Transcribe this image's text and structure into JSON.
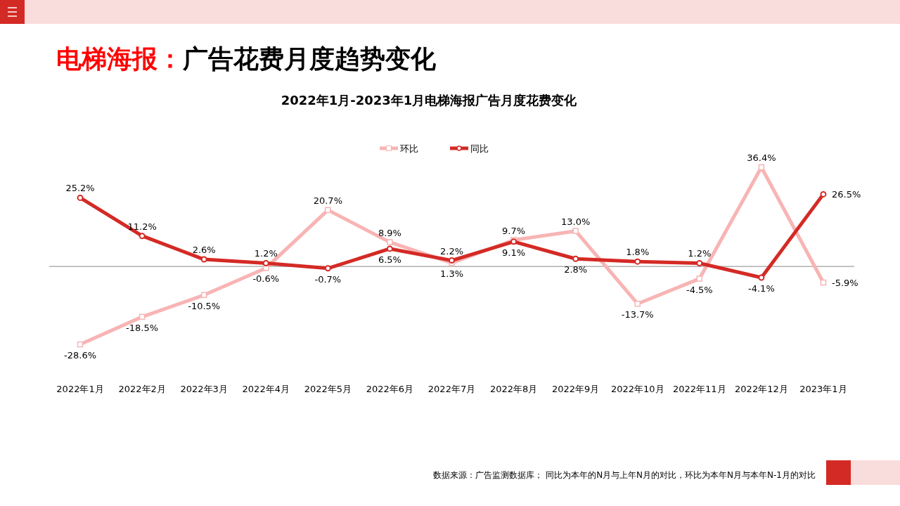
{
  "chart_data": {
    "type": "line",
    "title": "电梯海报：广告花费月度趋势变化",
    "subtitle": "2022年1月-2023年1月电梯海报广告月度花费变化",
    "categories": [
      "2022年1月",
      "2022年2月",
      "2022年3月",
      "2022年4月",
      "2022年5月",
      "2022年6月",
      "2022年7月",
      "2022年8月",
      "2022年9月",
      "2022年10月",
      "2022年11月",
      "2022年12月",
      "2023年1月"
    ],
    "series": [
      {
        "name": "环比",
        "color": "#f8b4b4",
        "marker": "square",
        "values": [
          -28.6,
          -18.5,
          -10.5,
          -0.6,
          20.7,
          8.9,
          1.3,
          9.7,
          13.0,
          -13.7,
          -4.5,
          36.4,
          -5.9
        ],
        "value_labels": [
          "-28.6%",
          "-18.5%",
          "-10.5%",
          "-0.6%",
          "20.7%",
          "8.9%",
          "1.3%",
          "9.7%",
          "13.0%",
          "-13.7%",
          "-4.5%",
          "36.4%",
          "-5.9%"
        ]
      },
      {
        "name": "同比",
        "color": "#d42a25",
        "marker": "circle",
        "values": [
          25.2,
          11.2,
          2.6,
          1.2,
          -0.7,
          6.5,
          2.2,
          9.1,
          2.8,
          1.8,
          1.2,
          -4.1,
          26.5
        ],
        "value_labels": [
          "25.2%",
          "11.2%",
          "2.6%",
          "1.2%",
          "-0.7%",
          "6.5%",
          "2.2%",
          "9.1%",
          "2.8%",
          "1.8%",
          "1.2%",
          "-4.1%",
          "26.5%"
        ]
      }
    ],
    "legend": "top",
    "annotations": [
      "数据来源：广告监测数据库； 同比为本年的N月与上年N月的对比，环比为本年N月与本年N-1月的对比"
    ]
  }
}
